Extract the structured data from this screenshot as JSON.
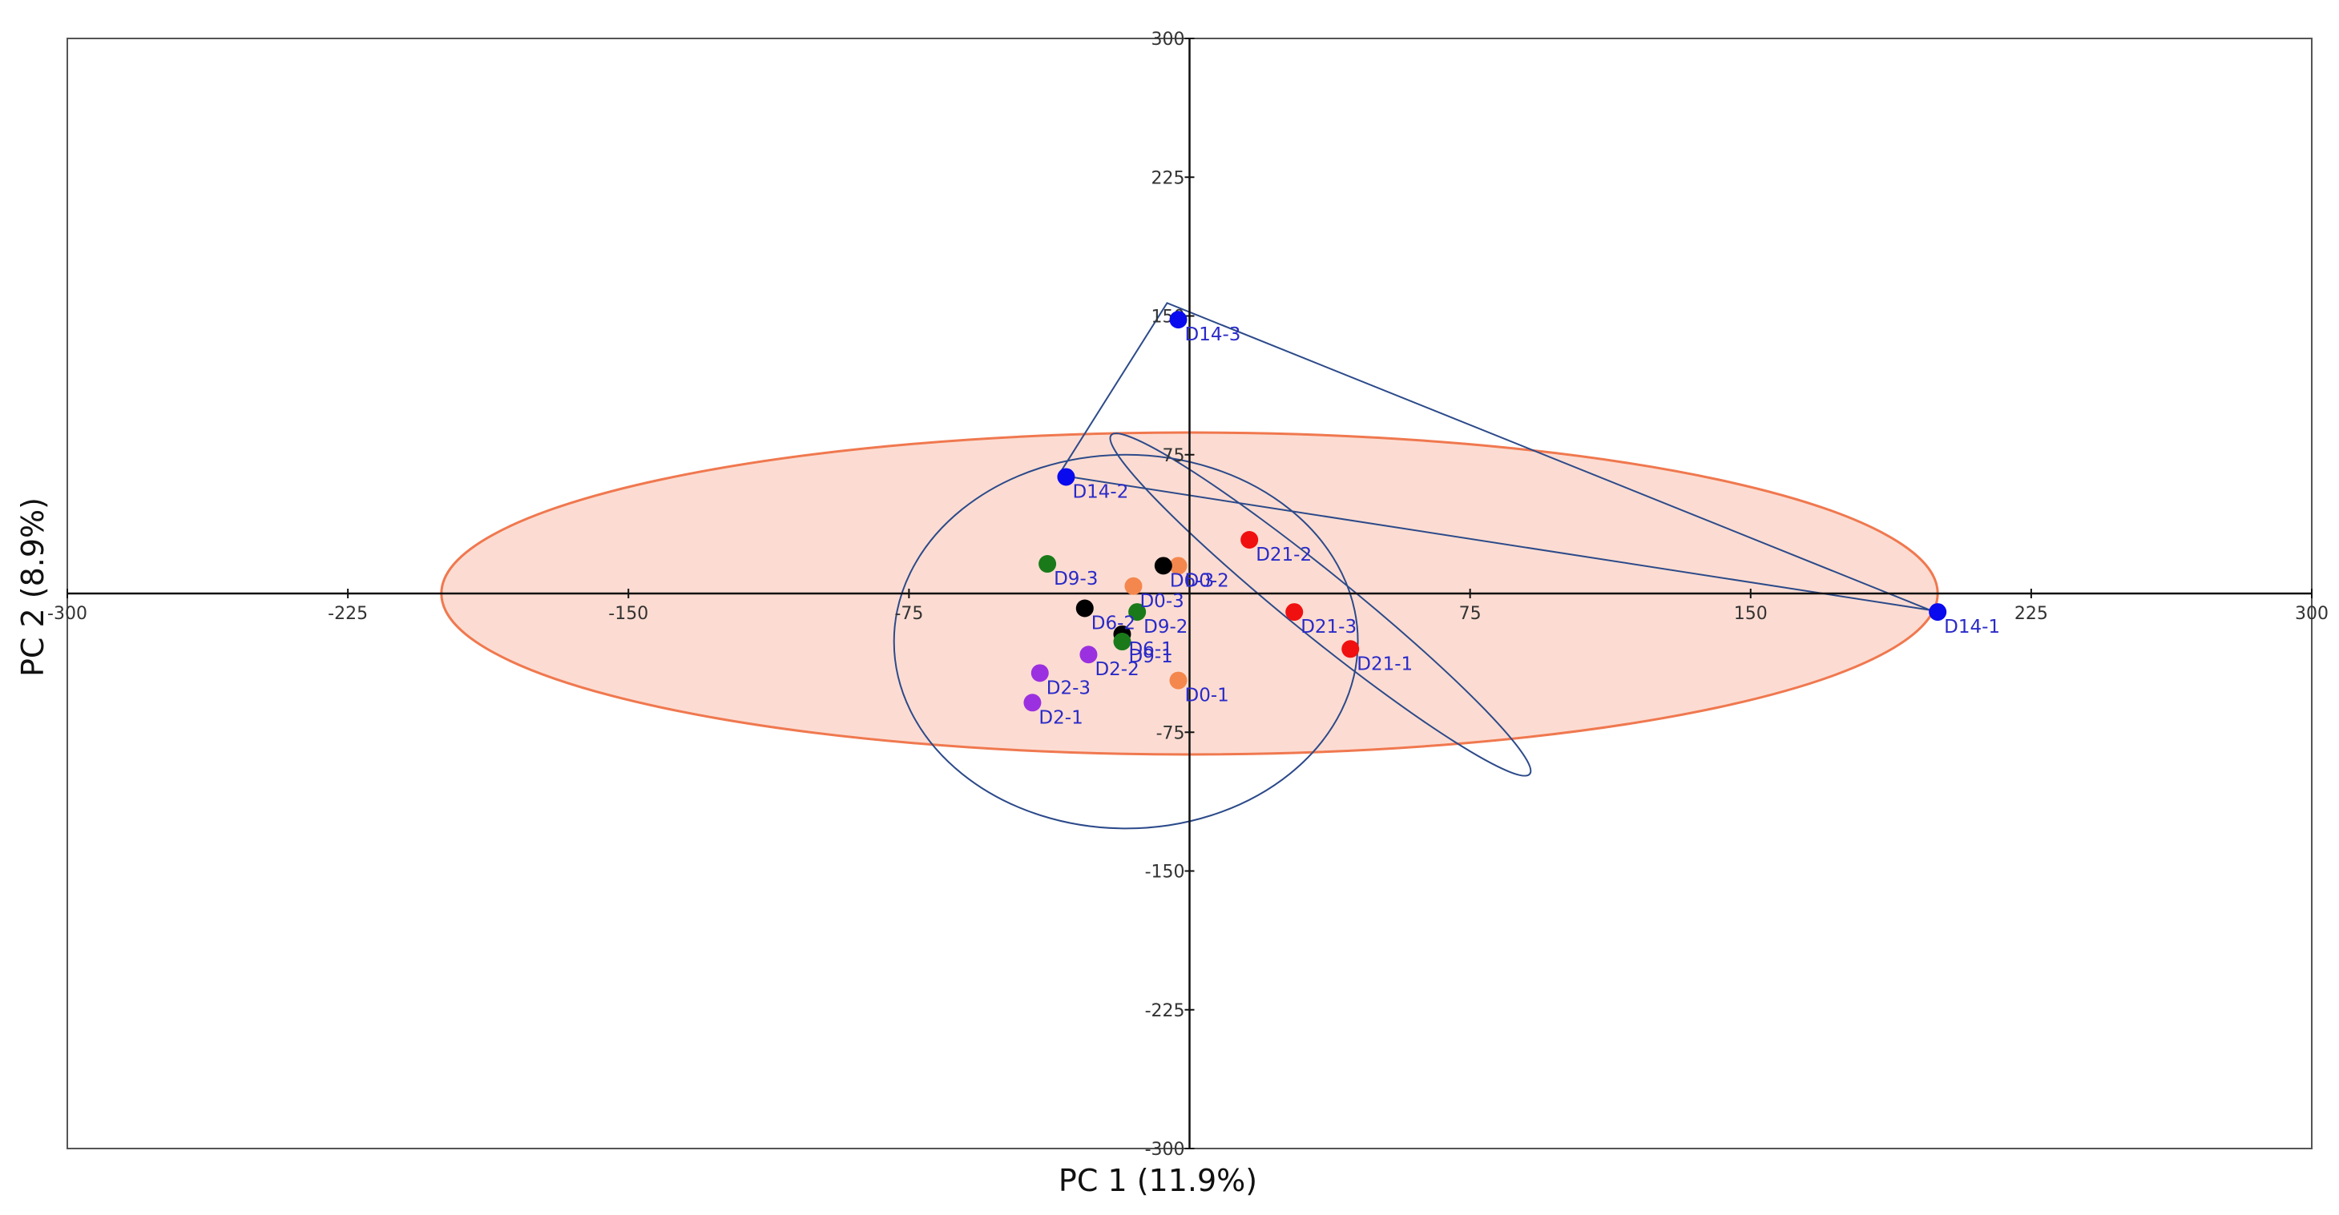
{
  "chart_data": {
    "type": "scatter",
    "title": "",
    "xlabel": "PC 1 (11.9%)",
    "ylabel": "PC 2 (8.9%)",
    "xlim": [
      -300,
      300
    ],
    "ylim": [
      -300,
      300
    ],
    "x_ticks": [
      "-300",
      "-225",
      "-150",
      "-75",
      "75",
      "150",
      "225",
      "300"
    ],
    "y_ticks": [
      "300",
      "225",
      "150",
      "75",
      "-75",
      "-150",
      "-225",
      "-300"
    ],
    "confidence_ellipse": {
      "cx": 0,
      "cy": 0,
      "rx": 200,
      "ry": 87,
      "fill": "#fcdcd2",
      "stroke": "#f0784f"
    },
    "group_colors": {
      "D0": "#f4874d",
      "D2": "#9b30e0",
      "D6": "#000000",
      "D9": "#1a7a1a",
      "D14": "#0a0aee",
      "D21": "#f01010"
    },
    "points": [
      {
        "label": "D0-1",
        "group": "D0",
        "x": -3,
        "y": -47
      },
      {
        "label": "D0-2",
        "group": "D0",
        "x": -3,
        "y": 15
      },
      {
        "label": "D0-3",
        "group": "D0",
        "x": -15,
        "y": 4
      },
      {
        "label": "D2-1",
        "group": "D2",
        "x": -42,
        "y": -59
      },
      {
        "label": "D2-2",
        "group": "D2",
        "x": -27,
        "y": -33
      },
      {
        "label": "D2-3",
        "group": "D2",
        "x": -40,
        "y": -43
      },
      {
        "label": "D6-1",
        "group": "D6",
        "x": -18,
        "y": -22
      },
      {
        "label": "D6-2",
        "group": "D6",
        "x": -28,
        "y": -8
      },
      {
        "label": "D6-3",
        "group": "D6",
        "x": -7,
        "y": 15
      },
      {
        "label": "D9-1",
        "group": "D9",
        "x": -18,
        "y": -26
      },
      {
        "label": "D9-2",
        "group": "D9",
        "x": -14,
        "y": -10
      },
      {
        "label": "D9-3",
        "group": "D9",
        "x": -38,
        "y": 16
      },
      {
        "label": "D14-1",
        "group": "D14",
        "x": 200,
        "y": -10
      },
      {
        "label": "D14-2",
        "group": "D14",
        "x": -33,
        "y": 63
      },
      {
        "label": "D14-3",
        "group": "D14",
        "x": -3,
        "y": 148
      },
      {
        "label": "D21-1",
        "group": "D21",
        "x": 43,
        "y": -30
      },
      {
        "label": "D21-2",
        "group": "D21",
        "x": 16,
        "y": 29
      },
      {
        "label": "D21-3",
        "group": "D21",
        "x": 28,
        "y": -10
      }
    ],
    "group_hulls": [
      {
        "name": "D14",
        "shape": "polygon",
        "vertices": [
          [
            -35,
            64
          ],
          [
            -6,
            157
          ],
          [
            198,
            -9
          ]
        ]
      },
      {
        "name": "D21",
        "shape": "ellipse",
        "cx": 35,
        "cy": -6,
        "rx": 72,
        "ry": 17,
        "angle_deg": 39
      },
      {
        "name": "D0-D2-D6-D9",
        "shape": "ellipse",
        "cx": -17,
        "cy": -26,
        "rx": 62,
        "ry": 101,
        "angle_deg": 0
      }
    ],
    "colors": {
      "axis": "#111111",
      "frame": "#555555",
      "label": "#2a2ac8",
      "hull": "#2c4a8a"
    }
  }
}
